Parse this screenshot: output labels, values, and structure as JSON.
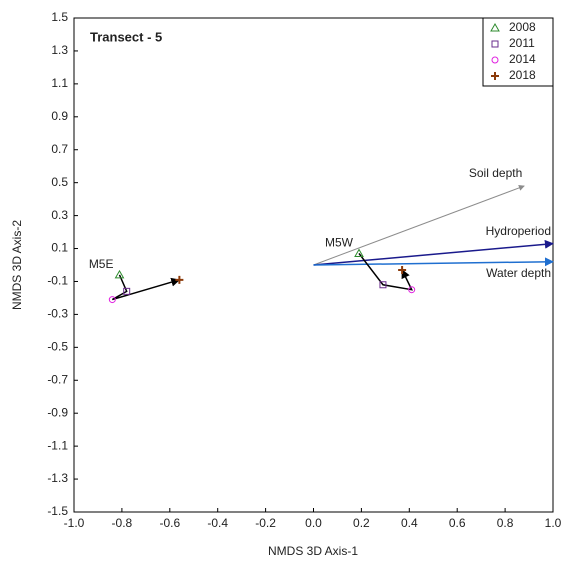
{
  "chart_data": {
    "type": "scatter",
    "title": "Transect - 5",
    "x_label": "NMDS 3D Axis-1",
    "y_label": "NMDS 3D Axis-2",
    "xlim": [
      -1.0,
      1.0
    ],
    "ylim": [
      -1.5,
      1.5
    ],
    "xticks": [
      {
        "value": -1.0,
        "label": "-1.0"
      },
      -0.8,
      -0.6,
      -0.4,
      -0.2,
      {
        "value": 0,
        "label": "0.0"
      },
      0.2,
      0.4,
      0.6,
      0.8,
      {
        "value": 1.0,
        "label": "1.0"
      }
    ],
    "yticks": [
      1.5,
      1.3,
      1.1,
      0.9,
      0.7,
      0.5,
      0.3,
      0.1,
      -0.1,
      -0.3,
      -0.5,
      -0.7,
      -0.9,
      -1.1,
      -1.3,
      -1.5
    ],
    "grid": false,
    "legend": "top-right",
    "sites": [
      "M5E",
      "M5W"
    ],
    "series": [
      {
        "name": "2008",
        "color": "#2e8b2e",
        "marker": "triangle",
        "x": [
          -0.81,
          0.19
        ],
        "values": [
          -0.06,
          0.07
        ]
      },
      {
        "name": "2011",
        "color": "#6a2c8c",
        "marker": "square",
        "x": [
          -0.78,
          0.29
        ],
        "values": [
          -0.16,
          -0.12
        ]
      },
      {
        "name": "2014",
        "color": "#e020e0",
        "marker": "circle",
        "x": [
          -0.84,
          0.41
        ],
        "values": [
          -0.21,
          -0.15
        ]
      },
      {
        "name": "2018",
        "color": "#8b3a0a",
        "marker": "plus",
        "x": [
          -0.56,
          0.37
        ],
        "values": [
          -0.09,
          -0.03
        ]
      }
    ],
    "vectors": [
      {
        "name": "Soil depth",
        "color": "#8c8c8c",
        "x": 0.88,
        "y": 0.48
      },
      {
        "name": "Hydroperiod",
        "color": "#1a1a8c",
        "x": 1.0,
        "y": 0.13
      },
      {
        "name": "Water depth",
        "color": "#1f6fd0",
        "x": 1.0,
        "y": 0.02
      }
    ]
  }
}
